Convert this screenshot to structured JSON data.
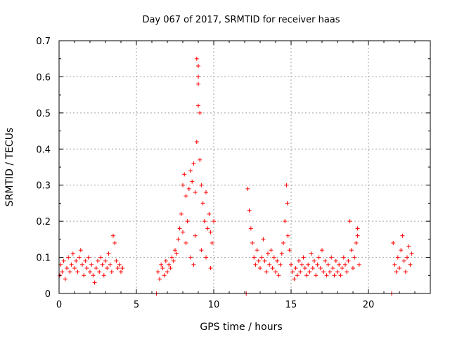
{
  "chart_data": {
    "type": "scatter",
    "title": "Day 067 of 2017, SRMTID for receiver haas",
    "xlabel": "GPS time / hours",
    "ylabel": "SRMTID / TECUs",
    "xlim": [
      0,
      24
    ],
    "ylim": [
      0,
      0.7
    ],
    "xticks": [
      "0",
      "5",
      "10",
      "15",
      "20"
    ],
    "yticks": [
      "0",
      "0.1",
      "0.2",
      "0.3",
      "0.4",
      "0.5",
      "0.6",
      "0.7"
    ],
    "grid": true,
    "series_color": "#ff0000",
    "marker": "plus",
    "points": [
      [
        0.05,
        0.05
      ],
      [
        0.1,
        0.08
      ],
      [
        0.2,
        0.06
      ],
      [
        0.3,
        0.09
      ],
      [
        0.4,
        0.04
      ],
      [
        0.5,
        0.07
      ],
      [
        0.6,
        0.1
      ],
      [
        0.7,
        0.06
      ],
      [
        0.8,
        0.08
      ],
      [
        0.9,
        0.11
      ],
      [
        1.0,
        0.07
      ],
      [
        1.1,
        0.09
      ],
      [
        1.2,
        0.06
      ],
      [
        1.3,
        0.1
      ],
      [
        1.4,
        0.12
      ],
      [
        1.5,
        0.08
      ],
      [
        1.6,
        0.05
      ],
      [
        1.7,
        0.09
      ],
      [
        1.8,
        0.07
      ],
      [
        1.9,
        0.1
      ],
      [
        2.0,
        0.06
      ],
      [
        2.1,
        0.08
      ],
      [
        2.2,
        0.05
      ],
      [
        2.3,
        0.03
      ],
      [
        2.4,
        0.07
      ],
      [
        2.5,
        0.09
      ],
      [
        2.6,
        0.06
      ],
      [
        2.7,
        0.1
      ],
      [
        2.8,
        0.08
      ],
      [
        2.9,
        0.05
      ],
      [
        3.0,
        0.09
      ],
      [
        3.1,
        0.07
      ],
      [
        3.2,
        0.11
      ],
      [
        3.3,
        0.08
      ],
      [
        3.4,
        0.06
      ],
      [
        3.5,
        0.16
      ],
      [
        3.6,
        0.14
      ],
      [
        3.7,
        0.09
      ],
      [
        3.8,
        0.07
      ],
      [
        3.9,
        0.08
      ],
      [
        4.0,
        0.06
      ],
      [
        4.1,
        0.07
      ],
      [
        6.3,
        0.0
      ],
      [
        6.4,
        0.06
      ],
      [
        6.5,
        0.04
      ],
      [
        6.6,
        0.08
      ],
      [
        6.7,
        0.07
      ],
      [
        6.8,
        0.05
      ],
      [
        6.9,
        0.09
      ],
      [
        7.0,
        0.06
      ],
      [
        7.1,
        0.08
      ],
      [
        7.2,
        0.07
      ],
      [
        7.3,
        0.1
      ],
      [
        7.4,
        0.09
      ],
      [
        7.5,
        0.12
      ],
      [
        7.6,
        0.11
      ],
      [
        7.7,
        0.15
      ],
      [
        7.8,
        0.18
      ],
      [
        7.9,
        0.22
      ],
      [
        8.0,
        0.17
      ],
      [
        8.0,
        0.3
      ],
      [
        8.1,
        0.33
      ],
      [
        8.2,
        0.27
      ],
      [
        8.3,
        0.2
      ],
      [
        8.4,
        0.29
      ],
      [
        8.5,
        0.34
      ],
      [
        8.6,
        0.31
      ],
      [
        8.7,
        0.36
      ],
      [
        8.8,
        0.28
      ],
      [
        8.9,
        0.42
      ],
      [
        8.9,
        0.65
      ],
      [
        9.0,
        0.63
      ],
      [
        9.0,
        0.6
      ],
      [
        9.0,
        0.52
      ],
      [
        9.0,
        0.58
      ],
      [
        9.1,
        0.5
      ],
      [
        9.1,
        0.37
      ],
      [
        9.2,
        0.3
      ],
      [
        9.3,
        0.25
      ],
      [
        9.4,
        0.2
      ],
      [
        9.5,
        0.28
      ],
      [
        9.6,
        0.18
      ],
      [
        9.7,
        0.22
      ],
      [
        9.8,
        0.17
      ],
      [
        9.9,
        0.14
      ],
      [
        10.0,
        0.2
      ],
      [
        8.5,
        0.1
      ],
      [
        8.7,
        0.08
      ],
      [
        9.2,
        0.12
      ],
      [
        9.5,
        0.1
      ],
      [
        9.8,
        0.07
      ],
      [
        8.2,
        0.14
      ],
      [
        8.8,
        0.16
      ],
      [
        12.1,
        0.0
      ],
      [
        12.2,
        0.29
      ],
      [
        12.3,
        0.23
      ],
      [
        12.4,
        0.18
      ],
      [
        12.5,
        0.14
      ],
      [
        12.6,
        0.1
      ],
      [
        12.7,
        0.08
      ],
      [
        12.8,
        0.12
      ],
      [
        12.9,
        0.09
      ],
      [
        13.0,
        0.07
      ],
      [
        13.1,
        0.1
      ],
      [
        13.2,
        0.15
      ],
      [
        13.3,
        0.09
      ],
      [
        13.4,
        0.06
      ],
      [
        13.5,
        0.11
      ],
      [
        13.6,
        0.08
      ],
      [
        13.7,
        0.12
      ],
      [
        13.8,
        0.07
      ],
      [
        13.9,
        0.1
      ],
      [
        14.0,
        0.06
      ],
      [
        14.1,
        0.09
      ],
      [
        14.2,
        0.05
      ],
      [
        14.3,
        0.08
      ],
      [
        14.4,
        0.11
      ],
      [
        14.5,
        0.14
      ],
      [
        14.6,
        0.2
      ],
      [
        14.7,
        0.3
      ],
      [
        14.75,
        0.25
      ],
      [
        14.8,
        0.16
      ],
      [
        14.9,
        0.12
      ],
      [
        15.0,
        0.08
      ],
      [
        15.1,
        0.06
      ],
      [
        15.2,
        0.04
      ],
      [
        15.3,
        0.07
      ],
      [
        15.4,
        0.05
      ],
      [
        15.5,
        0.09
      ],
      [
        15.6,
        0.06
      ],
      [
        15.7,
        0.08
      ],
      [
        15.8,
        0.1
      ],
      [
        15.9,
        0.07
      ],
      [
        16.0,
        0.05
      ],
      [
        16.1,
        0.08
      ],
      [
        16.2,
        0.06
      ],
      [
        16.3,
        0.11
      ],
      [
        16.4,
        0.07
      ],
      [
        16.5,
        0.09
      ],
      [
        16.6,
        0.05
      ],
      [
        16.7,
        0.08
      ],
      [
        16.8,
        0.1
      ],
      [
        16.9,
        0.07
      ],
      [
        17.0,
        0.12
      ],
      [
        17.1,
        0.06
      ],
      [
        17.2,
        0.09
      ],
      [
        17.3,
        0.05
      ],
      [
        17.4,
        0.08
      ],
      [
        17.5,
        0.06
      ],
      [
        17.6,
        0.1
      ],
      [
        17.7,
        0.07
      ],
      [
        17.8,
        0.05
      ],
      [
        17.9,
        0.09
      ],
      [
        18.0,
        0.06
      ],
      [
        18.1,
        0.08
      ],
      [
        18.2,
        0.05
      ],
      [
        18.3,
        0.07
      ],
      [
        18.4,
        0.1
      ],
      [
        18.5,
        0.08
      ],
      [
        18.6,
        0.06
      ],
      [
        18.7,
        0.09
      ],
      [
        18.8,
        0.2
      ],
      [
        18.9,
        0.12
      ],
      [
        19.0,
        0.07
      ],
      [
        19.1,
        0.1
      ],
      [
        19.2,
        0.14
      ],
      [
        19.3,
        0.18
      ],
      [
        19.3,
        0.16
      ],
      [
        19.4,
        0.08
      ],
      [
        21.5,
        0.0
      ],
      [
        21.6,
        0.14
      ],
      [
        21.7,
        0.08
      ],
      [
        21.8,
        0.06
      ],
      [
        21.9,
        0.1
      ],
      [
        22.0,
        0.07
      ],
      [
        22.1,
        0.12
      ],
      [
        22.2,
        0.16
      ],
      [
        22.3,
        0.09
      ],
      [
        22.4,
        0.06
      ],
      [
        22.5,
        0.1
      ],
      [
        22.6,
        0.13
      ],
      [
        22.7,
        0.08
      ],
      [
        22.8,
        0.11
      ]
    ]
  }
}
